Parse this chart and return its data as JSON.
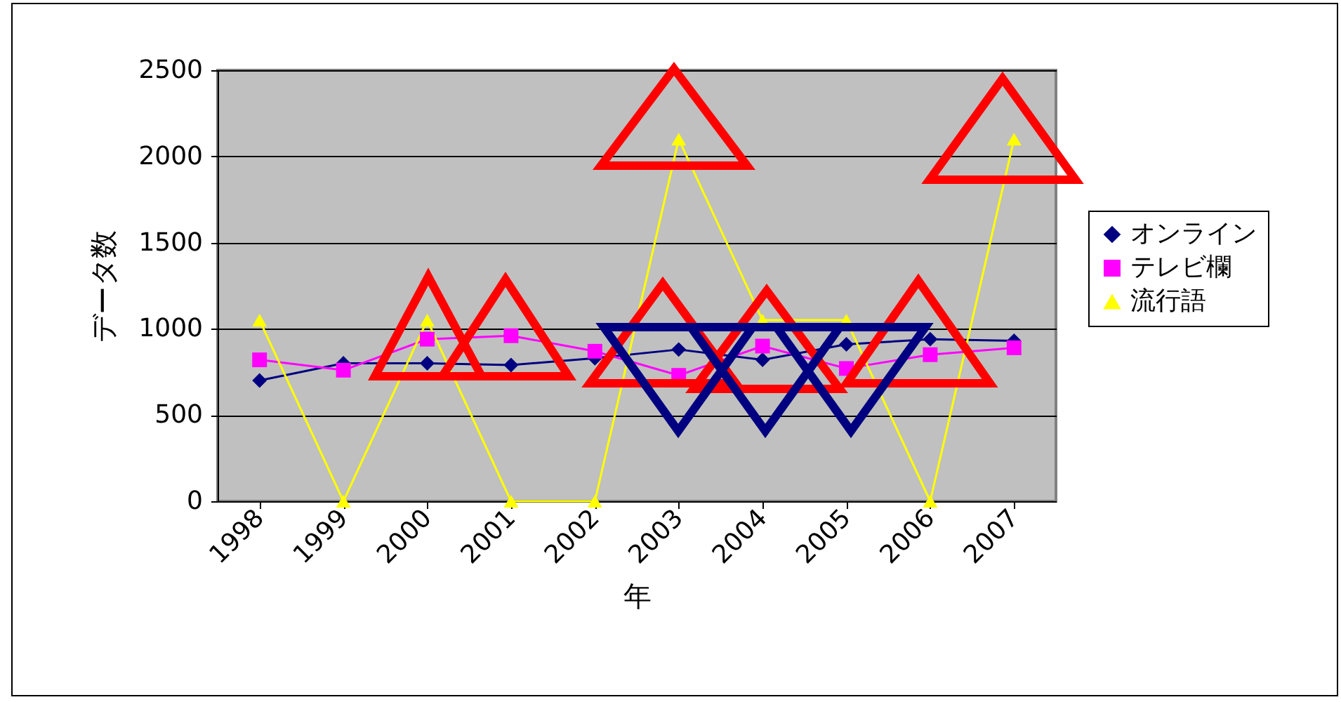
{
  "chart_data": {
    "type": "line",
    "xlabel": "年",
    "ylabel": "データ数",
    "categories": [
      "1998",
      "1999",
      "2000",
      "2001",
      "2002",
      "2003",
      "2004",
      "2005",
      "2006",
      "2007"
    ],
    "series": [
      {
        "name": "オンライン",
        "color": "#000080",
        "marker": "diamond",
        "values": [
          700,
          800,
          800,
          790,
          830,
          880,
          820,
          910,
          940,
          930
        ]
      },
      {
        "name": "テレビ欄",
        "color": "#ff00ff",
        "marker": "square",
        "values": [
          820,
          760,
          940,
          960,
          870,
          730,
          900,
          770,
          850,
          890
        ]
      },
      {
        "name": "流行語",
        "color": "#ffff00",
        "marker": "triangle",
        "values": [
          1050,
          0,
          1050,
          0,
          0,
          2100,
          1050,
          1050,
          0,
          2100
        ]
      }
    ],
    "ylim": [
      0,
      2500
    ],
    "yticks": [
      0,
      500,
      1000,
      1500,
      2000,
      2500
    ],
    "grid": "y",
    "legend": "right"
  }
}
